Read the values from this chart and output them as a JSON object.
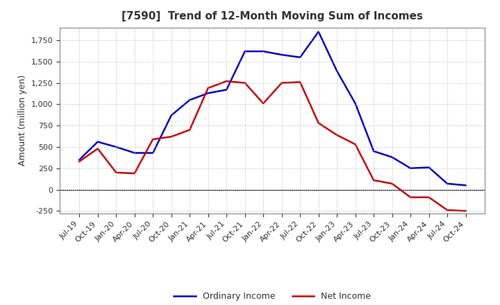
{
  "title": "[7590]  Trend of 12-Month Moving Sum of Incomes",
  "ylabel": "Amount (million yen)",
  "ylim": [
    -280,
    1900
  ],
  "yticks": [
    -250,
    0,
    250,
    500,
    750,
    1000,
    1250,
    1500,
    1750
  ],
  "background_color": "#ffffff",
  "plot_bg_color": "#ffffff",
  "grid_color": "#b0b0b0",
  "ordinary_income_color": "#0000cc",
  "net_income_color": "#cc0000",
  "line_width": 1.8,
  "labels": [
    "Jul-19",
    "Oct-19",
    "Jan-20",
    "Apr-20",
    "Jul-20",
    "Oct-20",
    "Jan-21",
    "Apr-21",
    "Jul-21",
    "Oct-21",
    "Jan-22",
    "Apr-22",
    "Jul-22",
    "Oct-22",
    "Jan-23",
    "Apr-23",
    "Jul-23",
    "Oct-23",
    "Jan-24",
    "Apr-24",
    "Jul-24",
    "Oct-24"
  ],
  "ordinary_income": [
    350,
    560,
    500,
    430,
    430,
    870,
    1050,
    1130,
    1170,
    1620,
    1620,
    1580,
    1550,
    1850,
    1390,
    1010,
    450,
    380,
    250,
    260,
    70,
    50
  ],
  "net_income": [
    330,
    480,
    200,
    190,
    590,
    620,
    700,
    1190,
    1270,
    1250,
    1010,
    1250,
    1260,
    780,
    640,
    530,
    110,
    70,
    -90,
    -90,
    -240,
    -250
  ],
  "title_fontsize": 11,
  "ylabel_fontsize": 9,
  "tick_fontsize": 8,
  "legend_fontsize": 9
}
